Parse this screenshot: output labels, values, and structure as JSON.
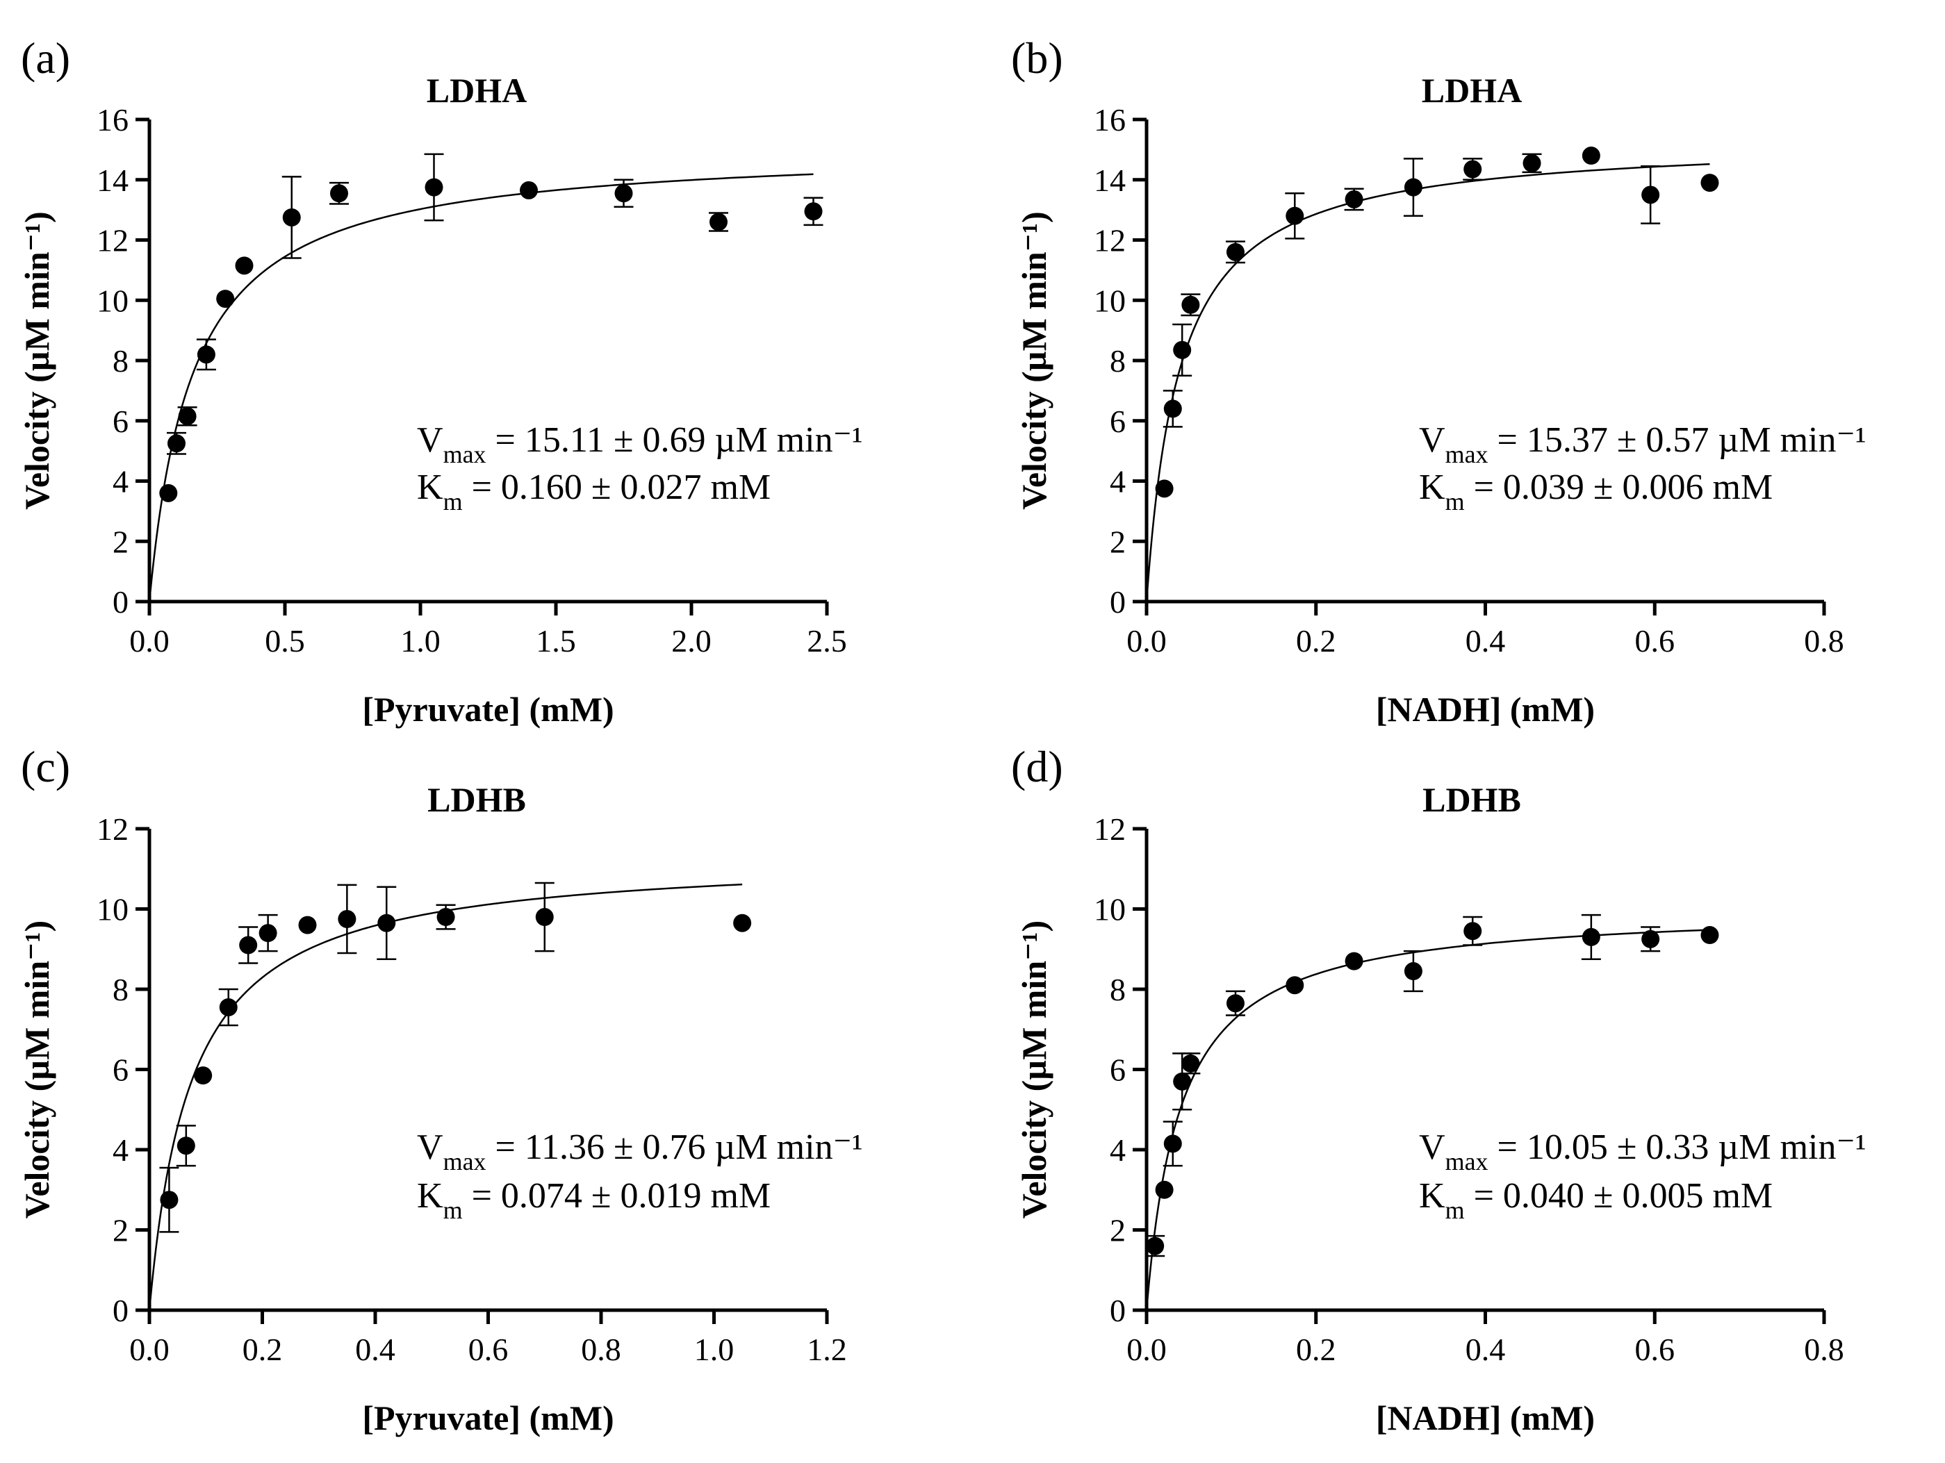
{
  "chart_data": [
    {
      "type": "scatter",
      "panel": "(a)",
      "title": "LDHA",
      "xlabel": "[Pyruvate] (mM)",
      "ylabel": "Velocity (µM min⁻¹)",
      "xlim": [
        0,
        2.5
      ],
      "ylim": [
        0,
        16
      ],
      "xticks": [
        "0.0",
        "0.5",
        "1.0",
        "1.5",
        "2.0",
        "2.5"
      ],
      "yticks": [
        "0",
        "2",
        "4",
        "6",
        "8",
        "10",
        "12",
        "14",
        "16"
      ],
      "points": [
        {
          "x": 0.07,
          "y": 3.6,
          "err": 0
        },
        {
          "x": 0.1,
          "y": 5.25,
          "err": 0.35
        },
        {
          "x": 0.14,
          "y": 6.15,
          "err": 0.3
        },
        {
          "x": 0.21,
          "y": 8.2,
          "err": 0.5
        },
        {
          "x": 0.28,
          "y": 10.05,
          "err": 0
        },
        {
          "x": 0.35,
          "y": 11.15,
          "err": 0
        },
        {
          "x": 0.525,
          "y": 12.75,
          "err": 1.35
        },
        {
          "x": 0.7,
          "y": 13.55,
          "err": 0.35
        },
        {
          "x": 1.05,
          "y": 13.75,
          "err": 1.1
        },
        {
          "x": 1.4,
          "y": 13.65,
          "err": 0
        },
        {
          "x": 1.75,
          "y": 13.55,
          "err": 0.45
        },
        {
          "x": 2.1,
          "y": 12.6,
          "err": 0.3
        },
        {
          "x": 2.45,
          "y": 12.95,
          "err": 0.45
        }
      ],
      "fit": {
        "model": "michaelis-menten",
        "vmax": 15.11,
        "km": 0.16,
        "x_range": [
          0,
          2.45
        ]
      },
      "annotation": {
        "vmax_label": "V",
        "vmax_sub": "max",
        "vmax_text": " = 15.11 ± 0.69 µM min⁻¹",
        "km_label": "K",
        "km_sub": "m",
        "km_text": " = 0.160 ± 0.027 mM"
      }
    },
    {
      "type": "scatter",
      "panel": "(b)",
      "title": "LDHA",
      "xlabel": "[NADH] (mM)",
      "ylabel": "Velocity (µM min⁻¹)",
      "xlim": [
        0,
        0.8
      ],
      "ylim": [
        0,
        16
      ],
      "xticks": [
        "0.0",
        "0.2",
        "0.4",
        "0.6",
        "0.8"
      ],
      "yticks": [
        "0",
        "2",
        "4",
        "6",
        "8",
        "10",
        "12",
        "14",
        "16"
      ],
      "points": [
        {
          "x": 0.021,
          "y": 3.75,
          "err": 0
        },
        {
          "x": 0.031,
          "y": 6.4,
          "err": 0.6
        },
        {
          "x": 0.042,
          "y": 8.35,
          "err": 0.85
        },
        {
          "x": 0.052,
          "y": 9.85,
          "err": 0.35
        },
        {
          "x": 0.105,
          "y": 11.6,
          "err": 0.35
        },
        {
          "x": 0.175,
          "y": 12.8,
          "err": 0.75
        },
        {
          "x": 0.245,
          "y": 13.35,
          "err": 0.35
        },
        {
          "x": 0.315,
          "y": 13.75,
          "err": 0.95
        },
        {
          "x": 0.385,
          "y": 14.35,
          "err": 0.35
        },
        {
          "x": 0.455,
          "y": 14.55,
          "err": 0.3
        },
        {
          "x": 0.525,
          "y": 14.8,
          "err": 0
        },
        {
          "x": 0.595,
          "y": 13.5,
          "err": 0.95
        },
        {
          "x": 0.665,
          "y": 13.9,
          "err": 0
        }
      ],
      "fit": {
        "model": "michaelis-menten",
        "vmax": 15.37,
        "km": 0.039,
        "x_range": [
          0,
          0.665
        ]
      },
      "annotation": {
        "vmax_label": "V",
        "vmax_sub": "max",
        "vmax_text": " = 15.37 ± 0.57 µM min⁻¹",
        "km_label": "K",
        "km_sub": "m",
        "km_text": " = 0.039 ± 0.006 mM"
      }
    },
    {
      "type": "scatter",
      "panel": "(c)",
      "title": "LDHB",
      "xlabel": "[Pyruvate] (mM)",
      "ylabel": "Velocity (µM min⁻¹)",
      "xlim": [
        0,
        1.2
      ],
      "ylim": [
        0,
        12
      ],
      "xticks": [
        "0.0",
        "0.2",
        "0.4",
        "0.6",
        "0.8",
        "1.0",
        "1.2"
      ],
      "yticks": [
        "0",
        "2",
        "4",
        "6",
        "8",
        "10",
        "12"
      ],
      "points": [
        {
          "x": 0.035,
          "y": 2.75,
          "err": 0.8
        },
        {
          "x": 0.065,
          "y": 4.1,
          "err": 0.5
        },
        {
          "x": 0.095,
          "y": 5.85,
          "err": 0
        },
        {
          "x": 0.14,
          "y": 7.55,
          "err": 0.45
        },
        {
          "x": 0.175,
          "y": 9.1,
          "err": 0.45
        },
        {
          "x": 0.21,
          "y": 9.4,
          "err": 0.45
        },
        {
          "x": 0.28,
          "y": 9.6,
          "err": 0
        },
        {
          "x": 0.35,
          "y": 9.75,
          "err": 0.85
        },
        {
          "x": 0.42,
          "y": 9.65,
          "err": 0.9
        },
        {
          "x": 0.525,
          "y": 9.8,
          "err": 0.3
        },
        {
          "x": 0.7,
          "y": 9.8,
          "err": 0.85
        },
        {
          "x": 1.05,
          "y": 9.65,
          "err": 0
        }
      ],
      "fit": {
        "model": "michaelis-menten",
        "vmax": 11.36,
        "km": 0.074,
        "x_range": [
          0,
          1.05
        ]
      },
      "annotation": {
        "vmax_label": "V",
        "vmax_sub": "max",
        "vmax_text": " = 11.36 ± 0.76 µM min⁻¹",
        "km_label": "K",
        "km_sub": "m",
        "km_text": " = 0.074 ± 0.019 mM"
      }
    },
    {
      "type": "scatter",
      "panel": "(d)",
      "title": "LDHB",
      "xlabel": "[NADH] (mM)",
      "ylabel": "Velocity (µM min⁻¹)",
      "xlim": [
        0,
        0.8
      ],
      "ylim": [
        0,
        12
      ],
      "xticks": [
        "0.0",
        "0.2",
        "0.4",
        "0.6",
        "0.8"
      ],
      "yticks": [
        "0",
        "2",
        "4",
        "6",
        "8",
        "10",
        "12"
      ],
      "points": [
        {
          "x": 0.01,
          "y": 1.6,
          "err": 0.25
        },
        {
          "x": 0.021,
          "y": 3.0,
          "err": 0
        },
        {
          "x": 0.031,
          "y": 4.15,
          "err": 0.55
        },
        {
          "x": 0.042,
          "y": 5.7,
          "err": 0.7
        },
        {
          "x": 0.052,
          "y": 6.15,
          "err": 0.25
        },
        {
          "x": 0.105,
          "y": 7.65,
          "err": 0.3
        },
        {
          "x": 0.175,
          "y": 8.1,
          "err": 0
        },
        {
          "x": 0.245,
          "y": 8.7,
          "err": 0
        },
        {
          "x": 0.315,
          "y": 8.45,
          "err": 0.5
        },
        {
          "x": 0.385,
          "y": 9.45,
          "err": 0.35
        },
        {
          "x": 0.525,
          "y": 9.3,
          "err": 0.55
        },
        {
          "x": 0.595,
          "y": 9.25,
          "err": 0.3
        },
        {
          "x": 0.665,
          "y": 9.35,
          "err": 0
        }
      ],
      "fit": {
        "model": "michaelis-menten",
        "vmax": 10.05,
        "km": 0.04,
        "x_range": [
          0,
          0.665
        ]
      },
      "annotation": {
        "vmax_label": "V",
        "vmax_sub": "max",
        "vmax_text": " = 10.05 ± 0.33 µM min⁻¹",
        "km_label": "K",
        "km_sub": "m",
        "km_text": " = 0.040 ± 0.005 mM"
      }
    }
  ]
}
